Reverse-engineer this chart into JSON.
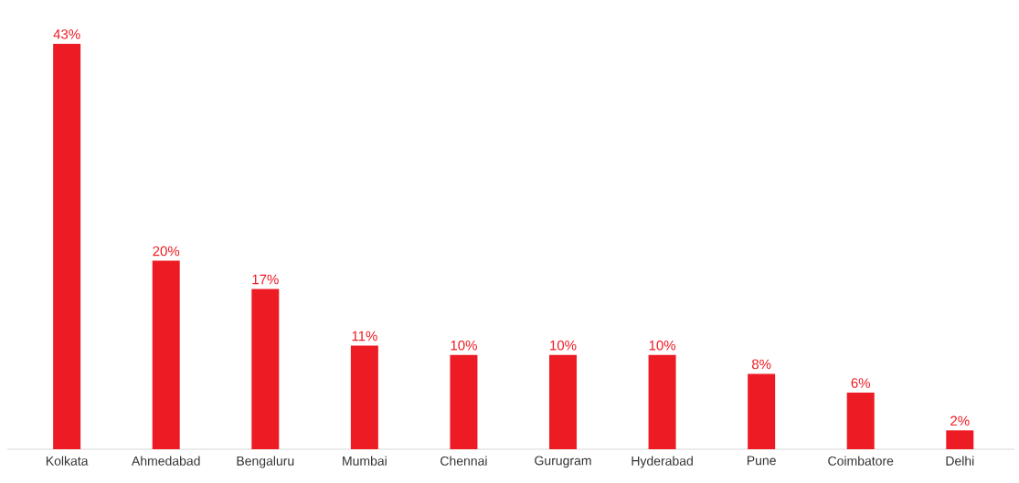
{
  "chart_data": {
    "type": "bar",
    "categories": [
      "Kolkata",
      "Ahmedabad",
      "Bengaluru",
      "Mumbai",
      "Chennai",
      "Gurugram",
      "Hyderabad",
      "Pune",
      "Coimbatore",
      "Delhi"
    ],
    "values": [
      43,
      20,
      17,
      11,
      10,
      10,
      10,
      8,
      6,
      2
    ],
    "value_labels": [
      "43%",
      "20%",
      "17%",
      "11%",
      "10%",
      "10%",
      "10%",
      "8%",
      "6%",
      "2%"
    ],
    "color": "#ed1c24"
  }
}
